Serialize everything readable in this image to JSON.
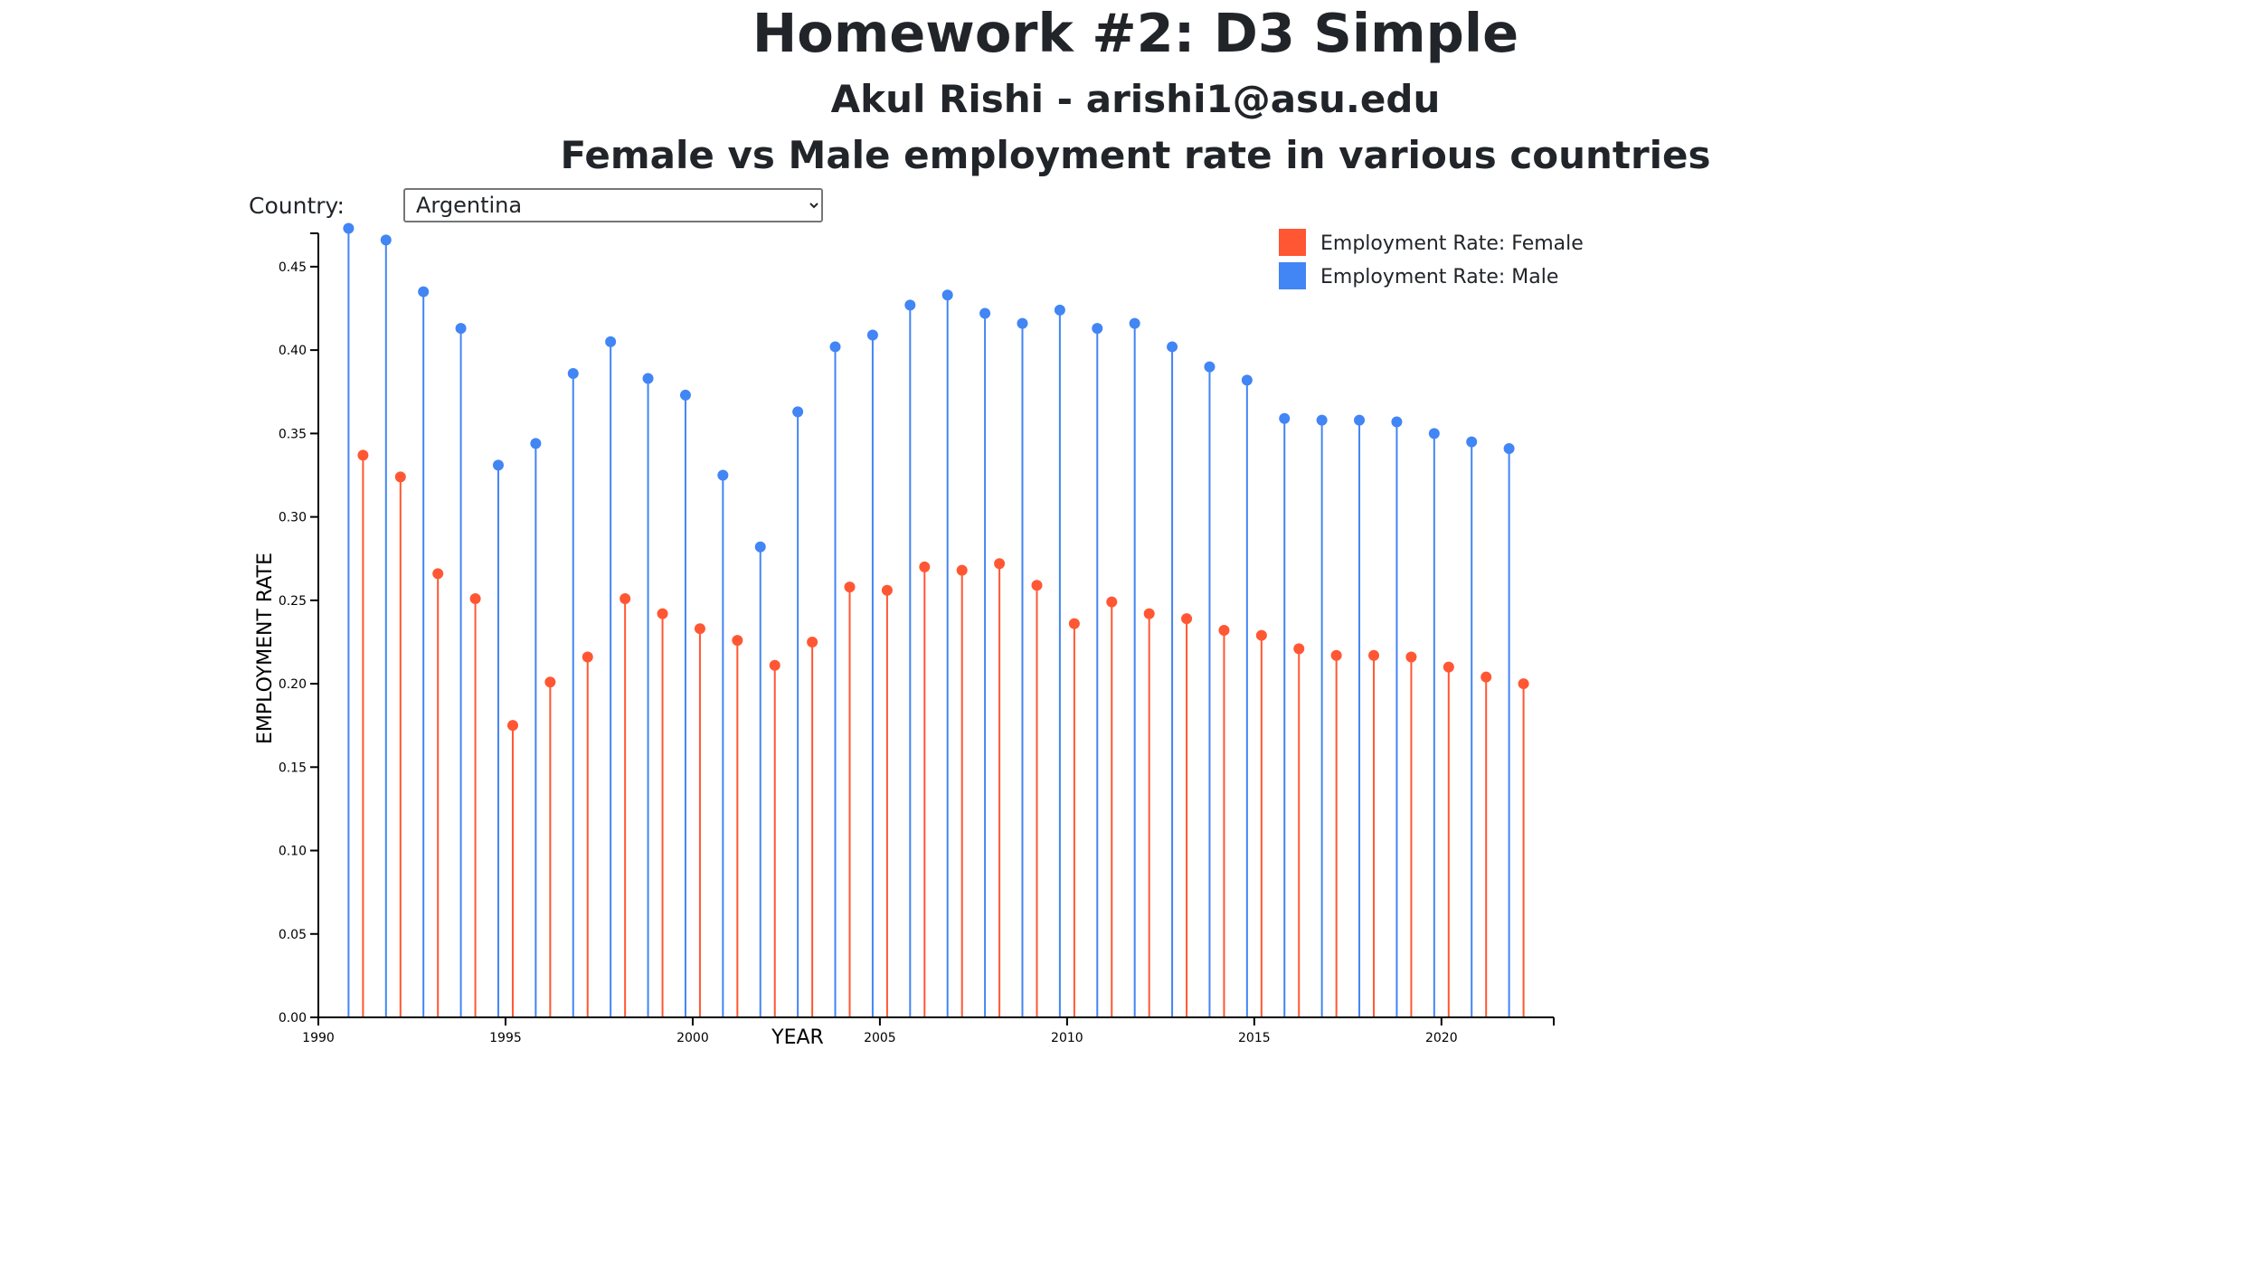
{
  "header": {
    "title": "Homework #2: D3 Simple",
    "subtitle": "Akul Rishi - arishi1@asu.edu",
    "chart_heading": "Female vs Male employment rate in various countries"
  },
  "controls": {
    "country_label": "Country:",
    "country_selected": "Argentina"
  },
  "colors": {
    "female": "#ff5733",
    "male": "#4285f4",
    "axis": "#000000"
  },
  "chart_data": {
    "type": "lollipop",
    "xlabel": "YEAR",
    "ylabel": "EMPLOYMENT RATE",
    "xlim": [
      1990,
      2023
    ],
    "ylim": [
      0,
      0.47
    ],
    "x_ticks": [
      1990,
      1995,
      2000,
      2005,
      2010,
      2015,
      2020
    ],
    "y_ticks": [
      "0.00",
      "0.05",
      "0.10",
      "0.15",
      "0.20",
      "0.25",
      "0.30",
      "0.35",
      "0.40",
      "0.45"
    ],
    "legend_position": "top-right",
    "grid": false,
    "years": [
      1991,
      1992,
      1993,
      1994,
      1995,
      1996,
      1997,
      1998,
      1999,
      2000,
      2001,
      2002,
      2003,
      2004,
      2005,
      2006,
      2007,
      2008,
      2009,
      2010,
      2011,
      2012,
      2013,
      2014,
      2015,
      2016,
      2017,
      2018,
      2019,
      2020,
      2021,
      2022
    ],
    "series": [
      {
        "name": "Employment Rate: Female",
        "color": "#ff5733",
        "values": [
          0.337,
          0.324,
          0.266,
          0.251,
          0.175,
          0.201,
          0.216,
          0.251,
          0.242,
          0.233,
          0.226,
          0.211,
          0.225,
          0.258,
          0.256,
          0.27,
          0.268,
          0.272,
          0.259,
          0.236,
          0.249,
          0.242,
          0.239,
          0.232,
          0.229,
          0.221,
          0.217,
          0.217,
          0.216,
          0.21,
          0.204,
          0.2
        ]
      },
      {
        "name": "Employment Rate: Male",
        "color": "#4285f4",
        "values": [
          0.473,
          0.466,
          0.435,
          0.413,
          0.331,
          0.344,
          0.386,
          0.405,
          0.383,
          0.373,
          0.325,
          0.282,
          0.363,
          0.402,
          0.409,
          0.427,
          0.433,
          0.422,
          0.416,
          0.424,
          0.413,
          0.416,
          0.402,
          0.39,
          0.382,
          0.359,
          0.358,
          0.358,
          0.357,
          0.35,
          0.345,
          0.341
        ]
      }
    ]
  }
}
